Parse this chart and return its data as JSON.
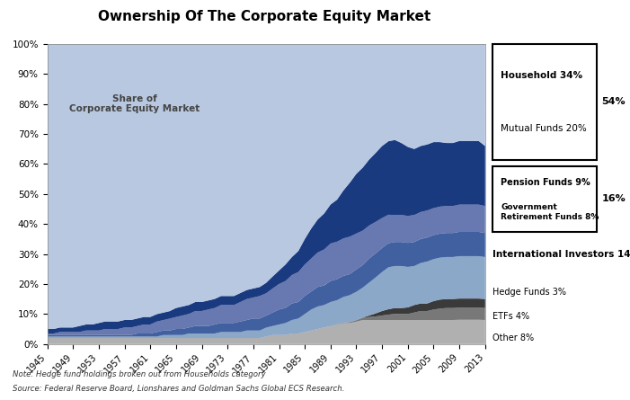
{
  "title": "Ownership Of The Corporate Equity Market",
  "years": [
    1945,
    1946,
    1947,
    1948,
    1949,
    1950,
    1951,
    1952,
    1953,
    1954,
    1955,
    1956,
    1957,
    1958,
    1959,
    1960,
    1961,
    1962,
    1963,
    1964,
    1965,
    1966,
    1967,
    1968,
    1969,
    1970,
    1971,
    1972,
    1973,
    1974,
    1975,
    1976,
    1977,
    1978,
    1979,
    1980,
    1981,
    1982,
    1983,
    1984,
    1985,
    1986,
    1987,
    1988,
    1989,
    1990,
    1991,
    1992,
    1993,
    1994,
    1995,
    1996,
    1997,
    1998,
    1999,
    2000,
    2001,
    2002,
    2003,
    2004,
    2005,
    2006,
    2007,
    2008,
    2009,
    2010,
    2011,
    2012,
    2013
  ],
  "series": {
    "Other": [
      2.0,
      2.0,
      2.0,
      2.0,
      2.0,
      2.0,
      2.0,
      2.0,
      2.0,
      2.0,
      2.0,
      2.0,
      2.0,
      2.0,
      2.0,
      2.0,
      2.0,
      2.0,
      2.0,
      2.0,
      2.0,
      2.0,
      2.0,
      2.0,
      2.0,
      2.0,
      2.0,
      2.0,
      2.0,
      2.0,
      2.0,
      2.0,
      2.0,
      2.0,
      2.5,
      3.0,
      3.0,
      3.0,
      3.5,
      3.5,
      4.0,
      4.5,
      5.0,
      5.5,
      6.0,
      6.5,
      7.0,
      7.0,
      7.5,
      8.0,
      8.0,
      8.0,
      8.0,
      8.0,
      8.0,
      8.0,
      8.0,
      8.0,
      8.0,
      8.0,
      8.0,
      8.0,
      8.0,
      8.0,
      8.0,
      8.0,
      8.0,
      8.0,
      8.0
    ],
    "ETFs": [
      0.0,
      0.0,
      0.0,
      0.0,
      0.0,
      0.0,
      0.0,
      0.0,
      0.0,
      0.0,
      0.0,
      0.0,
      0.0,
      0.0,
      0.0,
      0.0,
      0.0,
      0.0,
      0.0,
      0.0,
      0.0,
      0.0,
      0.0,
      0.0,
      0.0,
      0.0,
      0.0,
      0.0,
      0.0,
      0.0,
      0.0,
      0.0,
      0.0,
      0.0,
      0.0,
      0.0,
      0.0,
      0.0,
      0.0,
      0.0,
      0.0,
      0.0,
      0.0,
      0.0,
      0.0,
      0.1,
      0.2,
      0.3,
      0.5,
      0.8,
      1.0,
      1.2,
      1.5,
      1.8,
      2.0,
      2.0,
      2.0,
      2.5,
      3.0,
      3.0,
      3.5,
      3.8,
      4.0,
      4.0,
      4.0,
      4.0,
      4.0,
      4.0,
      4.0
    ],
    "Hedge Funds": [
      0.0,
      0.0,
      0.0,
      0.0,
      0.0,
      0.0,
      0.0,
      0.0,
      0.0,
      0.0,
      0.0,
      0.0,
      0.0,
      0.0,
      0.0,
      0.0,
      0.0,
      0.0,
      0.0,
      0.0,
      0.0,
      0.0,
      0.0,
      0.0,
      0.0,
      0.0,
      0.0,
      0.0,
      0.0,
      0.0,
      0.0,
      0.0,
      0.0,
      0.0,
      0.0,
      0.0,
      0.0,
      0.0,
      0.0,
      0.0,
      0.0,
      0.0,
      0.0,
      0.0,
      0.0,
      0.0,
      0.0,
      0.0,
      0.0,
      0.0,
      0.5,
      1.0,
      1.5,
      1.8,
      2.0,
      2.0,
      2.2,
      2.5,
      2.5,
      2.5,
      2.8,
      3.0,
      3.0,
      3.0,
      3.0,
      3.0,
      3.0,
      3.0,
      3.0
    ],
    "International Investors": [
      0.5,
      0.5,
      0.5,
      0.5,
      0.5,
      0.5,
      0.5,
      0.5,
      0.5,
      0.5,
      0.5,
      0.5,
      0.5,
      0.5,
      0.5,
      0.5,
      0.5,
      0.5,
      1.0,
      1.0,
      1.0,
      1.0,
      1.5,
      1.5,
      1.5,
      1.5,
      1.5,
      2.0,
      2.0,
      2.0,
      2.0,
      2.5,
      2.5,
      2.5,
      3.0,
      3.0,
      3.5,
      4.0,
      4.5,
      5.0,
      6.0,
      7.0,
      7.5,
      7.5,
      8.0,
      8.0,
      8.5,
      9.0,
      9.5,
      10.0,
      11.0,
      12.0,
      13.0,
      14.0,
      14.0,
      14.0,
      13.5,
      13.0,
      13.5,
      14.0,
      14.0,
      14.0,
      14.0,
      14.0,
      14.0,
      14.0,
      14.0,
      14.0,
      14.0
    ],
    "Govt Retirement Funds": [
      0.5,
      0.5,
      0.5,
      0.5,
      0.5,
      0.5,
      0.5,
      0.5,
      0.5,
      0.5,
      0.5,
      0.5,
      0.5,
      0.5,
      1.0,
      1.0,
      1.0,
      1.5,
      1.5,
      1.5,
      2.0,
      2.0,
      2.0,
      2.5,
      2.5,
      2.5,
      3.0,
      3.0,
      3.0,
      3.0,
      3.5,
      3.5,
      4.0,
      4.0,
      4.0,
      4.5,
      5.0,
      5.0,
      5.5,
      5.5,
      6.0,
      6.0,
      6.5,
      6.5,
      7.0,
      7.0,
      7.0,
      7.0,
      7.5,
      7.5,
      8.0,
      8.0,
      8.0,
      8.0,
      8.0,
      8.0,
      8.0,
      8.0,
      8.0,
      8.0,
      8.0,
      8.0,
      8.0,
      8.0,
      8.0,
      8.0,
      8.0,
      8.0,
      8.0
    ],
    "Pension Funds": [
      0.5,
      0.5,
      1.0,
      1.0,
      1.0,
      1.0,
      1.5,
      1.5,
      1.5,
      2.0,
      2.0,
      2.0,
      2.5,
      2.5,
      2.5,
      3.0,
      3.0,
      3.5,
      3.5,
      4.0,
      4.0,
      4.5,
      4.5,
      5.0,
      5.0,
      5.5,
      5.5,
      6.0,
      6.0,
      6.0,
      6.5,
      7.0,
      7.0,
      7.5,
      7.5,
      8.0,
      8.5,
      9.0,
      9.5,
      10.0,
      10.5,
      11.0,
      11.5,
      12.0,
      12.5,
      12.5,
      12.5,
      12.5,
      12.0,
      11.5,
      11.0,
      10.5,
      10.0,
      9.5,
      9.0,
      9.0,
      9.0,
      9.0,
      9.0,
      9.0,
      9.0,
      9.0,
      9.0,
      9.0,
      9.0,
      9.0,
      9.0,
      9.0,
      9.0
    ],
    "Mutual Funds": [
      1.5,
      1.5,
      1.5,
      1.5,
      1.5,
      2.0,
      2.0,
      2.0,
      2.5,
      2.5,
      2.5,
      2.5,
      2.5,
      2.5,
      2.5,
      2.5,
      2.5,
      2.5,
      2.5,
      2.5,
      3.0,
      3.0,
      3.0,
      3.0,
      3.0,
      3.0,
      3.0,
      3.0,
      3.0,
      3.0,
      3.0,
      3.0,
      3.0,
      3.0,
      3.5,
      4.0,
      4.5,
      5.5,
      6.0,
      7.0,
      8.5,
      10.0,
      11.0,
      12.0,
      13.0,
      14.0,
      16.0,
      18.0,
      20.0,
      21.0,
      22.0,
      23.0,
      24.0,
      24.5,
      25.0,
      24.0,
      23.0,
      22.0,
      22.0,
      22.0,
      22.0,
      21.5,
      21.0,
      21.0,
      21.0,
      21.0,
      21.0,
      21.0,
      20.0
    ],
    "Household": [
      95.0,
      95.0,
      94.5,
      94.5,
      94.5,
      94.0,
      93.5,
      93.5,
      93.0,
      92.5,
      92.5,
      92.5,
      92.0,
      92.0,
      91.5,
      91.0,
      91.0,
      90.5,
      90.0,
      89.5,
      88.0,
      87.5,
      87.0,
      86.0,
      86.0,
      85.5,
      85.0,
      84.0,
      84.0,
      84.0,
      83.0,
      82.0,
      81.5,
      81.0,
      80.0,
      77.5,
      75.5,
      73.5,
      71.0,
      69.0,
      65.0,
      61.5,
      58.5,
      56.5,
      53.5,
      51.9,
      48.8,
      46.2,
      43.5,
      41.2,
      38.5,
      36.3,
      34.0,
      32.4,
      32.0,
      33.0,
      34.3,
      35.0,
      34.0,
      33.5,
      32.7,
      32.7,
      33.0,
      33.0,
      32.0,
      32.0,
      32.0,
      32.0,
      34.0
    ]
  },
  "colors": {
    "Household": "#b8c8e0",
    "Mutual Funds": "#1a3a80",
    "Pension Funds": "#6878b0",
    "Govt Retirement Funds": "#4060a0",
    "International Investors": "#8ca8c8",
    "Hedge Funds": "#3a3a3a",
    "ETFs": "#787878",
    "Other": "#b0b0b0"
  },
  "yticks": [
    0,
    10,
    20,
    30,
    40,
    50,
    60,
    70,
    80,
    90,
    100
  ],
  "xtick_years": [
    1945,
    1949,
    1953,
    1957,
    1961,
    1965,
    1969,
    1973,
    1977,
    1981,
    1985,
    1989,
    1993,
    1997,
    2001,
    2005,
    2009,
    2013
  ],
  "note": "Note: Hedge fund holdings broken out from Households category",
  "source": "Source: Federal Reserve Board, Lionshares and Goldman Sachs Global ECS Research.",
  "watermark": "Share of\nCorporate Equity Market"
}
